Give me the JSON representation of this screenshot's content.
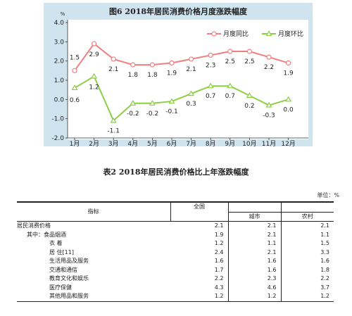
{
  "chart_data": {
    "type": "line",
    "title": "图6  2018年居民消费价格月度涨跌幅度",
    "y_unit": "%",
    "categories": [
      "1月",
      "2月",
      "3月",
      "4月",
      "5月",
      "6月",
      "7月",
      "8月",
      "9月",
      "10月",
      "11月",
      "12月"
    ],
    "ylim": [
      -2.0,
      4.0
    ],
    "yticks": [
      "4.0",
      "3.0",
      "2.0",
      "1.0",
      "0.0",
      "-1.0",
      "-2.0"
    ],
    "grid": false,
    "legend_position": "top-right",
    "series": [
      {
        "name": "月度同比",
        "color": "#f08080",
        "marker": "circle",
        "values": [
          1.5,
          2.9,
          2.1,
          1.8,
          1.8,
          1.9,
          2.1,
          2.3,
          2.5,
          2.5,
          2.2,
          1.9
        ],
        "labels": [
          "1.5",
          "2.9",
          "2.1",
          "1.8",
          "1.8",
          "1.9",
          "2.1",
          "2.3",
          "2.5",
          "2.5",
          "2.2",
          "1.9"
        ]
      },
      {
        "name": "月度环比",
        "color": "#8ccf44",
        "marker": "triangle",
        "values": [
          0.6,
          1.2,
          -1.1,
          -0.2,
          -0.2,
          -0.1,
          0.3,
          0.7,
          0.7,
          0.2,
          -0.3,
          0.0
        ],
        "labels": [
          "0.6",
          "1.2",
          "-1.1",
          "-0.2",
          "-0.2",
          "-0.1",
          "0.3",
          "0.7",
          "0.7",
          "0.2",
          "-0.3",
          "0.0"
        ]
      }
    ]
  },
  "table": {
    "title": "表2   2018年居民消费价格比上年涨跌幅度",
    "unit": "单位：%",
    "headers": {
      "indicator": "指标",
      "national": "全国",
      "urban": "城市",
      "rural": "农村"
    },
    "rows": [
      {
        "label": "居民消费价格",
        "indent": 0,
        "national": "2.1",
        "urban": "2.1",
        "rural": "2.1"
      },
      {
        "label": "其中：食品烟酒",
        "indent": 1,
        "national": "1.9",
        "urban": "2.1",
        "rural": "1.1"
      },
      {
        "label": "衣    着",
        "indent": 2,
        "national": "1.2",
        "urban": "1.1",
        "rural": "1.5"
      },
      {
        "label": "居    住[11]",
        "indent": 2,
        "national": "2.4",
        "urban": "2.1",
        "rural": "3.3"
      },
      {
        "label": "生活用品及服务",
        "indent": 3,
        "national": "1.6",
        "urban": "1.6",
        "rural": "1.6"
      },
      {
        "label": "交通和通信",
        "indent": 3,
        "national": "1.7",
        "urban": "1.6",
        "rural": "1.8"
      },
      {
        "label": "教育文化和娱乐",
        "indent": 3,
        "national": "2.2",
        "urban": "2.3",
        "rural": "2.2"
      },
      {
        "label": "医疗保健",
        "indent": 3,
        "national": "4.3",
        "urban": "4.6",
        "rural": "3.7"
      },
      {
        "label": "其他用品和服务",
        "indent": 3,
        "national": "1.2",
        "urban": "1.2",
        "rural": "1.2"
      }
    ]
  }
}
